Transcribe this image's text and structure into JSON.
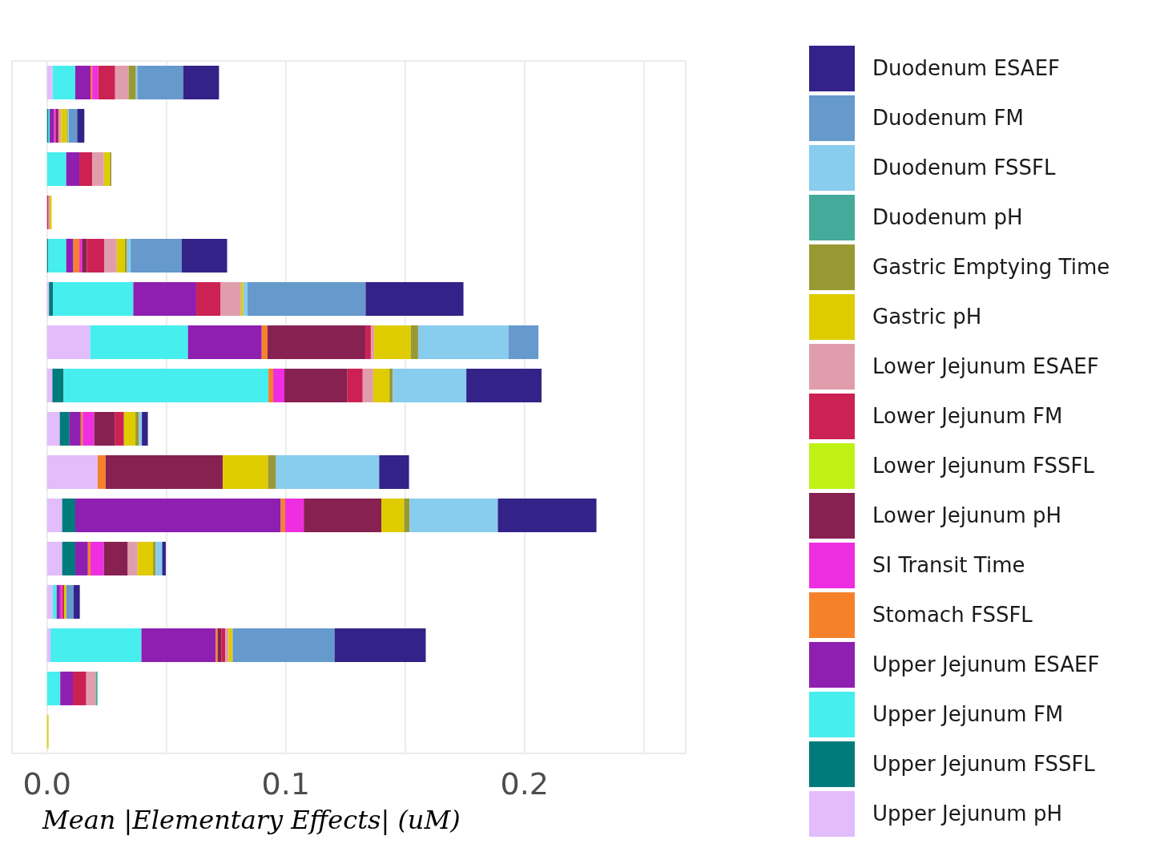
{
  "chart_data": {
    "type": "bar",
    "orientation": "horizontal",
    "stacked": true,
    "xlabel": "Mean |Elementary Effects| (uM)",
    "categories": [
      null,
      null,
      null,
      null,
      null,
      null,
      null,
      null,
      null,
      null,
      null,
      null,
      null,
      null,
      null,
      null
    ],
    "series": [
      {
        "name": "Upper Jejunum pH",
        "color": "#e3bcfc",
        "values": [
          0.0023,
          null,
          null,
          null,
          0,
          0.0008,
          0.018,
          0.0022,
          0.0053,
          0.0212,
          0.0063,
          0.0063,
          0.0024,
          0.0014,
          null,
          0
        ]
      },
      {
        "name": "Upper Jejunum FSSFL",
        "color": "#007b7b",
        "values": [
          0,
          0.0006,
          0,
          0,
          0.0005,
          0.0017,
          0,
          0.0047,
          0.0041,
          0,
          0.0055,
          0.0055,
          0,
          0,
          0,
          0
        ]
      },
      {
        "name": "Upper Jejunum FM",
        "color": "#47eeee",
        "values": [
          0.0095,
          0.0005,
          0.008,
          0,
          0.0075,
          0.0336,
          0.041,
          0.0858,
          0,
          0,
          0,
          0,
          0.0016,
          0.0381,
          0.0055,
          0
        ]
      },
      {
        "name": "Upper Jejunum ESAEF",
        "color": "#8e1fb1",
        "values": [
          0.0064,
          0.0017,
          0.0055,
          0,
          0.003,
          0.0264,
          0.0309,
          0,
          0.0047,
          0,
          0.0861,
          0.0053,
          0.0014,
          0.0311,
          0.0053,
          0
        ]
      },
      {
        "name": "Stomach FSSFL",
        "color": "#f5822a",
        "values": [
          0.0007,
          0,
          0,
          0,
          0.0025,
          0,
          0.0024,
          0.002,
          0.0008,
          0.0033,
          0.0018,
          0.0011,
          0,
          0.0008,
          0,
          0
        ]
      },
      {
        "name": "SI Transit Time",
        "color": "#ee2ee0",
        "values": [
          0.0025,
          0.0008,
          0,
          0,
          0.0011,
          0,
          0,
          0.0047,
          0.0048,
          0,
          0.0078,
          0.0056,
          0.0009,
          0,
          0,
          0
        ]
      },
      {
        "name": "Lower Jejunum pH",
        "color": "#872152",
        "values": [
          0,
          0.0008,
          0,
          0,
          0.002,
          0,
          0.041,
          0.0264,
          0.0086,
          0.0491,
          0.0325,
          0.01,
          0,
          0.0017,
          0,
          0
        ]
      },
      {
        "name": "Lower Jejunum FSSFL",
        "color": "#bff214",
        "values": [
          0,
          0,
          0,
          0,
          0,
          0,
          0,
          0,
          0,
          0,
          0,
          0,
          0,
          0,
          0,
          0
        ]
      },
      {
        "name": "Lower Jejunum FM",
        "color": "#cc2153",
        "values": [
          0.0071,
          0.0004,
          0.0054,
          0.0006,
          0.0073,
          0.0102,
          0.0023,
          0.0064,
          0.0039,
          0,
          0,
          0,
          0.0008,
          0.0015,
          0.0056,
          0
        ]
      },
      {
        "name": "Lower Jejunum ESAEF",
        "color": "#e09eac",
        "values": [
          0.0056,
          0.0011,
          0.0049,
          0.0005,
          0.0053,
          0.0085,
          0.0014,
          0.0044,
          0,
          0,
          0,
          0.0041,
          0,
          0.0014,
          0.004,
          0
        ]
      },
      {
        "name": "Gastric pH",
        "color": "#dfcc00",
        "values": [
          0,
          0.0024,
          0.0025,
          0.0008,
          0.0034,
          0.001,
          0.0153,
          0.0068,
          0.0048,
          0.0189,
          0.0095,
          0.0065,
          0.0009,
          0.0017,
          0,
          0.0006
        ]
      },
      {
        "name": "Gastric Emptying Time",
        "color": "#999933",
        "values": [
          0.0031,
          0.0004,
          0.0006,
          0,
          0.0009,
          0,
          0.0031,
          0.0014,
          0.0015,
          0.0032,
          0.0023,
          0.0011,
          0,
          0,
          0,
          0
        ]
      },
      {
        "name": "Duodenum pH",
        "color": "#44aa99",
        "values": [
          0,
          0,
          0,
          0,
          0,
          0,
          0,
          0,
          0,
          0,
          0,
          0,
          0,
          0,
          0.0007,
          0
        ]
      },
      {
        "name": "Duodenum FSSFL",
        "color": "#88ccee",
        "values": [
          0.0006,
          0.0004,
          0,
          0,
          0.0015,
          0.0017,
          0.0378,
          0.0308,
          0.0012,
          0.0434,
          0.037,
          0.0027,
          0,
          0,
          0,
          0
        ]
      },
      {
        "name": "Duodenum FM",
        "color": "#6699cc",
        "values": [
          0.0192,
          0.0035,
          0,
          0,
          0.0214,
          0.0495,
          0.0126,
          0,
          0,
          0,
          0,
          0,
          0.0031,
          0.0427,
          0,
          0
        ]
      },
      {
        "name": "Duodenum ESAEF",
        "color": "#332288",
        "values": [
          0.015,
          0.003,
          0,
          0,
          0.019,
          0.041,
          0,
          0.0315,
          0.0025,
          0.0125,
          0.0413,
          0.0015,
          0.0026,
          0.0382,
          0,
          0
        ]
      }
    ],
    "xlim": [
      -0.0147,
      0.2675
    ],
    "xticks": [
      {
        "value": 0,
        "label": "0.0"
      },
      {
        "value": 0.05,
        "label": null
      },
      {
        "value": 0.1,
        "label": "0.1"
      },
      {
        "value": 0.15,
        "label": null
      },
      {
        "value": 0.2,
        "label": "0.2"
      },
      {
        "value": 0.25,
        "label": null
      }
    ],
    "grid": true,
    "legend": "right",
    "tick_labels": "x"
  }
}
